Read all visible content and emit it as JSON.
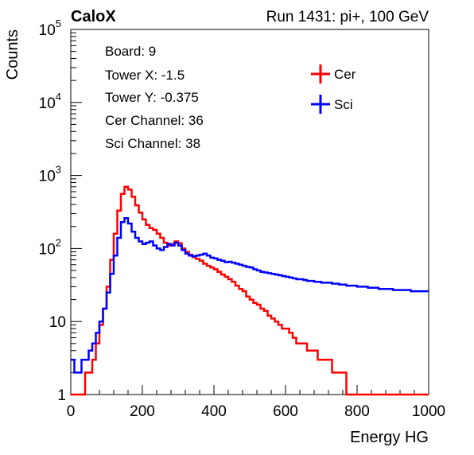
{
  "header": {
    "experiment": "CaloX",
    "run_label": "Run 1431: pi+, 100 GeV"
  },
  "info_box": {
    "lines": [
      "Board: 9",
      "Tower X: -1.5",
      "Tower Y: -0.375",
      "Cer Channel: 36",
      "Sci Channel: 38"
    ]
  },
  "colors": {
    "cer": "#ff0000",
    "sci": "#0000ff",
    "axis": "#000000"
  },
  "chart_data": {
    "type": "line",
    "title": "",
    "xlabel": "Energy HG",
    "ylabel": "Counts",
    "xlim": [
      0,
      1000
    ],
    "ylim": [
      1,
      100000
    ],
    "y_scale": "log",
    "x_ticks": [
      0,
      200,
      400,
      600,
      800,
      1000
    ],
    "x_tick_labels": [
      "0",
      "200",
      "400",
      "600",
      "800",
      "1000"
    ],
    "y_tick_labels": [
      {
        "value": 1,
        "base": "1",
        "exp": ""
      },
      {
        "value": 10,
        "base": "10",
        "exp": ""
      },
      {
        "value": 100,
        "base": "10",
        "exp": "2"
      },
      {
        "value": 1000,
        "base": "10",
        "exp": "3"
      },
      {
        "value": 10000,
        "base": "10",
        "exp": "4"
      },
      {
        "value": 100000,
        "base": "10",
        "exp": "5"
      }
    ],
    "legend_position": "top-right",
    "series": [
      {
        "name": "Cer",
        "color": "#ff0000",
        "points": [
          [
            0,
            1
          ],
          [
            10,
            0
          ],
          [
            20,
            0
          ],
          [
            30,
            1
          ],
          [
            40,
            2
          ],
          [
            50,
            2
          ],
          [
            60,
            3
          ],
          [
            70,
            5
          ],
          [
            80,
            9
          ],
          [
            90,
            15
          ],
          [
            100,
            30
          ],
          [
            110,
            70
          ],
          [
            120,
            160
          ],
          [
            130,
            330
          ],
          [
            140,
            560
          ],
          [
            150,
            700
          ],
          [
            160,
            640
          ],
          [
            170,
            510
          ],
          [
            180,
            390
          ],
          [
            190,
            310
          ],
          [
            200,
            250
          ],
          [
            210,
            210
          ],
          [
            220,
            190
          ],
          [
            230,
            180
          ],
          [
            240,
            160
          ],
          [
            250,
            140
          ],
          [
            260,
            120
          ],
          [
            270,
            110
          ],
          [
            280,
            115
          ],
          [
            290,
            125
          ],
          [
            300,
            118
          ],
          [
            310,
            100
          ],
          [
            320,
            90
          ],
          [
            330,
            82
          ],
          [
            340,
            76
          ],
          [
            350,
            72
          ],
          [
            360,
            68
          ],
          [
            370,
            62
          ],
          [
            380,
            58
          ],
          [
            390,
            55
          ],
          [
            400,
            52
          ],
          [
            410,
            48
          ],
          [
            420,
            44
          ],
          [
            430,
            41
          ],
          [
            440,
            38
          ],
          [
            450,
            35
          ],
          [
            460,
            31
          ],
          [
            470,
            28
          ],
          [
            480,
            26
          ],
          [
            490,
            22
          ],
          [
            500,
            20
          ],
          [
            510,
            18
          ],
          [
            520,
            17
          ],
          [
            530,
            15
          ],
          [
            540,
            14
          ],
          [
            550,
            12
          ],
          [
            560,
            11
          ],
          [
            570,
            10
          ],
          [
            580,
            9
          ],
          [
            590,
            8
          ],
          [
            600,
            8
          ],
          [
            610,
            7
          ],
          [
            620,
            6
          ],
          [
            630,
            5
          ],
          [
            640,
            5
          ],
          [
            650,
            5
          ],
          [
            660,
            4
          ],
          [
            670,
            4
          ],
          [
            680,
            4
          ],
          [
            690,
            3
          ],
          [
            700,
            3
          ],
          [
            710,
            3
          ],
          [
            720,
            3
          ],
          [
            730,
            2
          ],
          [
            740,
            2
          ],
          [
            750,
            2
          ],
          [
            760,
            2
          ],
          [
            770,
            1
          ],
          [
            780,
            1
          ],
          [
            790,
            1
          ],
          [
            800,
            1
          ],
          [
            810,
            1
          ],
          [
            820,
            1
          ],
          [
            830,
            1
          ],
          [
            840,
            1
          ],
          [
            850,
            1
          ],
          [
            860,
            1
          ],
          [
            870,
            1
          ],
          [
            880,
            1
          ],
          [
            890,
            1
          ],
          [
            900,
            1
          ],
          [
            910,
            1
          ],
          [
            920,
            1
          ],
          [
            930,
            1
          ],
          [
            940,
            1
          ],
          [
            950,
            1
          ],
          [
            960,
            1
          ],
          [
            970,
            1
          ],
          [
            980,
            1
          ],
          [
            990,
            1
          ],
          [
            1000,
            1
          ]
        ]
      },
      {
        "name": "Sci",
        "color": "#0000ff",
        "points": [
          [
            0,
            3
          ],
          [
            10,
            2
          ],
          [
            20,
            2
          ],
          [
            30,
            3
          ],
          [
            40,
            3
          ],
          [
            50,
            4
          ],
          [
            60,
            5
          ],
          [
            70,
            7
          ],
          [
            80,
            10
          ],
          [
            90,
            15
          ],
          [
            100,
            25
          ],
          [
            110,
            45
          ],
          [
            120,
            80
          ],
          [
            130,
            140
          ],
          [
            140,
            230
          ],
          [
            150,
            260
          ],
          [
            160,
            220
          ],
          [
            170,
            170
          ],
          [
            180,
            140
          ],
          [
            190,
            125
          ],
          [
            200,
            115
          ],
          [
            210,
            120
          ],
          [
            220,
            125
          ],
          [
            230,
            110
          ],
          [
            240,
            100
          ],
          [
            250,
            95
          ],
          [
            260,
            105
          ],
          [
            270,
            115
          ],
          [
            280,
            110
          ],
          [
            290,
            120
          ],
          [
            300,
            110
          ],
          [
            310,
            95
          ],
          [
            320,
            85
          ],
          [
            330,
            80
          ],
          [
            340,
            78
          ],
          [
            350,
            80
          ],
          [
            360,
            82
          ],
          [
            370,
            85
          ],
          [
            380,
            80
          ],
          [
            390,
            75
          ],
          [
            400,
            73
          ],
          [
            410,
            70
          ],
          [
            420,
            68
          ],
          [
            430,
            65
          ],
          [
            440,
            66
          ],
          [
            450,
            64
          ],
          [
            460,
            62
          ],
          [
            470,
            60
          ],
          [
            480,
            58
          ],
          [
            490,
            56
          ],
          [
            500,
            55
          ],
          [
            510,
            52
          ],
          [
            520,
            50
          ],
          [
            530,
            48
          ],
          [
            540,
            47
          ],
          [
            550,
            46
          ],
          [
            560,
            45
          ],
          [
            570,
            44
          ],
          [
            580,
            43
          ],
          [
            590,
            42
          ],
          [
            600,
            41
          ],
          [
            610,
            40
          ],
          [
            620,
            39
          ],
          [
            630,
            38
          ],
          [
            640,
            38
          ],
          [
            650,
            37
          ],
          [
            660,
            36
          ],
          [
            670,
            36
          ],
          [
            680,
            35
          ],
          [
            690,
            35
          ],
          [
            700,
            34
          ],
          [
            710,
            34
          ],
          [
            720,
            34
          ],
          [
            730,
            33
          ],
          [
            740,
            33
          ],
          [
            750,
            32
          ],
          [
            760,
            32
          ],
          [
            770,
            31
          ],
          [
            780,
            31
          ],
          [
            790,
            31
          ],
          [
            800,
            30
          ],
          [
            810,
            30
          ],
          [
            820,
            30
          ],
          [
            830,
            29
          ],
          [
            840,
            29
          ],
          [
            850,
            29
          ],
          [
            860,
            28
          ],
          [
            870,
            28
          ],
          [
            880,
            28
          ],
          [
            890,
            28
          ],
          [
            900,
            27
          ],
          [
            910,
            27
          ],
          [
            920,
            27
          ],
          [
            930,
            27
          ],
          [
            940,
            27
          ],
          [
            950,
            26
          ],
          [
            960,
            26
          ],
          [
            970,
            26
          ],
          [
            980,
            26
          ],
          [
            990,
            26
          ],
          [
            1000,
            26
          ]
        ]
      }
    ]
  }
}
